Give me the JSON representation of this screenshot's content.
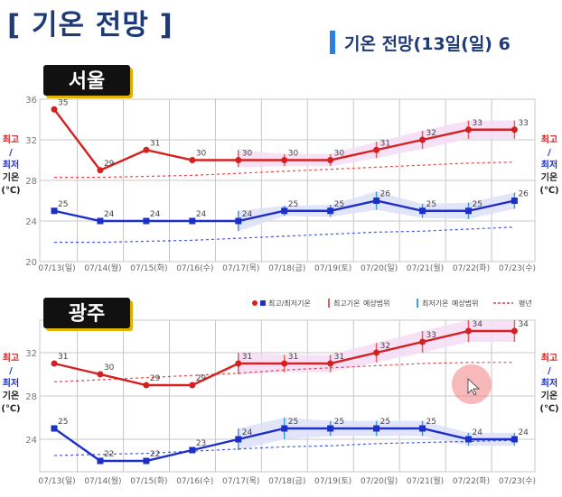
{
  "header": {
    "title": "[ 기온 전망 ]",
    "subtitle": "기온 전망(13일(일) 6"
  },
  "side_labels": {
    "max": "최고",
    "slash": "/",
    "min": "최저",
    "temp": "기온",
    "unit": "(℃)"
  },
  "legend": {
    "items": [
      "최고/최저기온",
      "최고기온",
      "예상범위",
      "최저기온",
      "예상범위",
      "평년"
    ]
  },
  "colors": {
    "max": "#d42020",
    "min": "#1c2fc8",
    "max_band": "#f4dcf4",
    "min_band": "#dde0f8",
    "grid": "#c8c8c8"
  },
  "chart_data": [
    {
      "type": "line",
      "title": "서울",
      "categories": [
        "07/13(일)",
        "07/14(월)",
        "07/15(화)",
        "07/16(수)",
        "07/17(목)",
        "07/18(금)",
        "07/19(토)",
        "07/20(일)",
        "07/21(월)",
        "07/22(화)",
        "07/23(수)"
      ],
      "ylim": [
        20,
        36
      ],
      "yticks": [
        20,
        24,
        28,
        32,
        36
      ],
      "series": [
        {
          "name": "최고기온",
          "values": [
            35,
            29,
            31,
            30,
            30,
            30,
            30,
            31,
            32,
            33,
            33
          ]
        },
        {
          "name": "최저기온",
          "values": [
            25,
            24,
            24,
            24,
            24,
            25,
            25,
            26,
            25,
            25,
            26
          ]
        },
        {
          "name": "평년 최고",
          "values": [
            28.3,
            28.3,
            28.4,
            28.5,
            28.7,
            28.9,
            29.1,
            29.3,
            29.5,
            29.7,
            29.8
          ]
        },
        {
          "name": "평년 최저",
          "values": [
            21.9,
            21.9,
            22.0,
            22.1,
            22.3,
            22.5,
            22.7,
            22.9,
            23.0,
            23.2,
            23.4
          ]
        }
      ],
      "ranges": {
        "max": [
          [
            null,
            null
          ],
          [
            null,
            null
          ],
          [
            null,
            null
          ],
          [
            null,
            null
          ],
          [
            29.3,
            31
          ],
          [
            29.4,
            30.6
          ],
          [
            29.4,
            30.6
          ],
          [
            30.2,
            31.8
          ],
          [
            31.1,
            32.9
          ],
          [
            32.1,
            33.9
          ],
          [
            32.1,
            33.9
          ]
        ],
        "min": [
          [
            null,
            null
          ],
          [
            null,
            null
          ],
          [
            null,
            null
          ],
          [
            null,
            null
          ],
          [
            23,
            25
          ],
          [
            24.5,
            25.5
          ],
          [
            24.4,
            25.6
          ],
          [
            25.1,
            26.9
          ],
          [
            24.3,
            25.7
          ],
          [
            24.2,
            25.8
          ],
          [
            25.2,
            26.8
          ]
        ]
      },
      "grid": true
    },
    {
      "type": "line",
      "title": "광주",
      "categories": [
        "07/13(일)",
        "07/14(월)",
        "07/15(화)",
        "07/16(수)",
        "07/17(목)",
        "07/18(금)",
        "07/19(토)",
        "07/20(일)",
        "07/21(월)",
        "07/22(화)",
        "07/23(수)"
      ],
      "ylim": [
        21,
        35
      ],
      "yticks": [
        24,
        28,
        32
      ],
      "series": [
        {
          "name": "최고기온",
          "values": [
            31,
            30,
            29,
            29,
            31,
            31,
            31,
            32,
            33,
            34,
            34
          ]
        },
        {
          "name": "최저기온",
          "values": [
            25,
            22,
            22,
            23,
            24,
            25,
            25,
            25,
            25,
            24,
            24
          ]
        },
        {
          "name": "평년 최고",
          "values": [
            29.3,
            29.5,
            29.7,
            29.9,
            30.1,
            30.4,
            30.6,
            30.8,
            31.0,
            31.1,
            31.1
          ]
        },
        {
          "name": "평년 최저",
          "values": [
            22.5,
            22.6,
            22.7,
            22.9,
            23.1,
            23.3,
            23.4,
            23.6,
            23.7,
            23.8,
            23.9
          ]
        }
      ],
      "ranges": {
        "max": [
          [
            null,
            null
          ],
          [
            null,
            null
          ],
          [
            null,
            null
          ],
          [
            null,
            null
          ],
          [
            30,
            32
          ],
          [
            30.2,
            31.8
          ],
          [
            30.2,
            31.8
          ],
          [
            31.1,
            32.9
          ],
          [
            32,
            34
          ],
          [
            33,
            35
          ],
          [
            33,
            35
          ]
        ],
        "min": [
          [
            null,
            null
          ],
          [
            null,
            null
          ],
          [
            null,
            null
          ],
          [
            null,
            null
          ],
          [
            23,
            25
          ],
          [
            24,
            26
          ],
          [
            24.3,
            25.7
          ],
          [
            24.3,
            25.7
          ],
          [
            24.3,
            25.7
          ],
          [
            23.4,
            24.6
          ],
          [
            23.4,
            24.6
          ]
        ]
      },
      "grid": true
    }
  ]
}
